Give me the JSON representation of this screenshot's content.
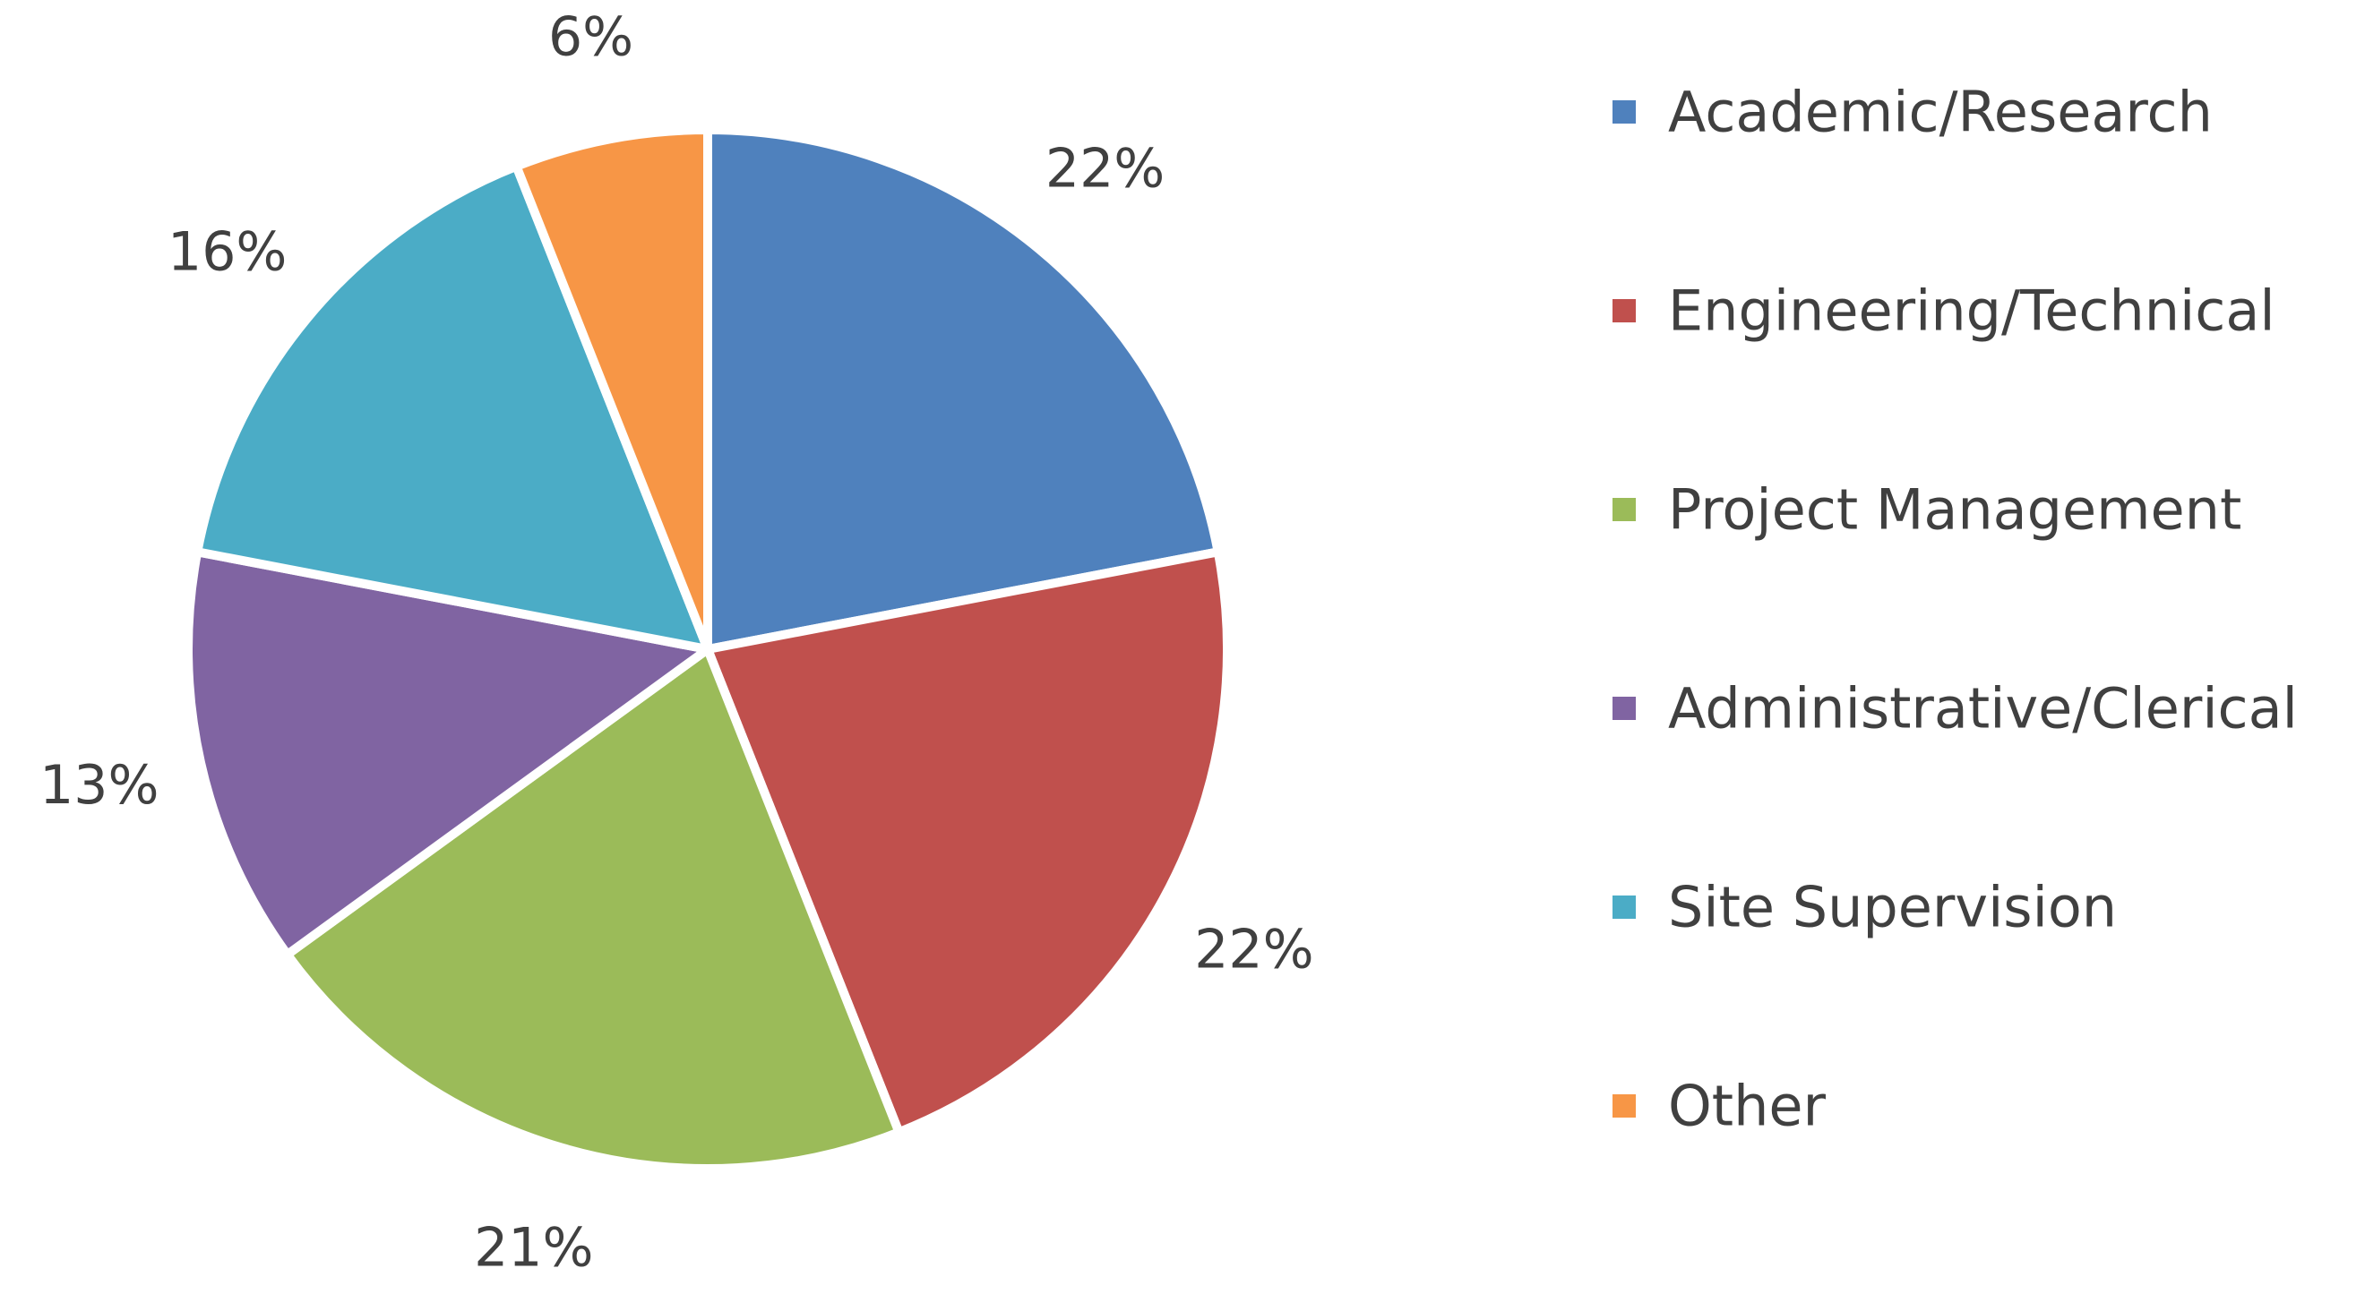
{
  "chart_data": {
    "type": "pie",
    "title": "",
    "categories": [
      "Academic/Research",
      "Engineering/Technical",
      "Project Management",
      "Administrative/Clerical",
      "Site Supervision",
      "Other"
    ],
    "values": [
      22,
      22,
      21,
      13,
      16,
      6
    ],
    "data_labels": [
      "22%",
      "22%",
      "21%",
      "13%",
      "16%",
      "6%"
    ],
    "colors": [
      "#4F81BD",
      "#C0504D",
      "#9BBB59",
      "#8064A2",
      "#4BACC6",
      "#F79646"
    ],
    "start_angle_deg": 0,
    "direction": "clockwise",
    "legend": {
      "placement": "right"
    }
  }
}
